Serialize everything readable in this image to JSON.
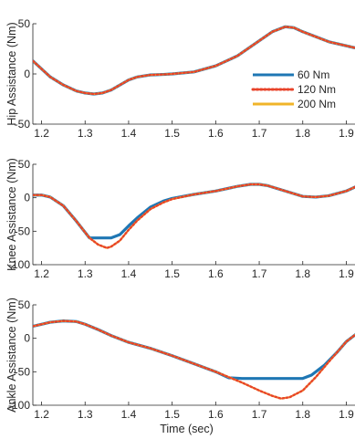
{
  "chart_data": [
    {
      "type": "line",
      "ylabel": "Hip Assistance (Nm)",
      "xlim": [
        1.18,
        1.92
      ],
      "ylim": [
        -50,
        50
      ],
      "xticks": [
        "1.2",
        "1.3",
        "1.4",
        "1.5",
        "1.6",
        "1.7",
        "1.8",
        "1.9"
      ],
      "yticks": [
        "-50",
        "0",
        "50"
      ],
      "legend_position": "right",
      "series": [
        {
          "name": "60 Nm",
          "color": "#1f77b4",
          "style": "solid",
          "x": [
            1.18,
            1.2,
            1.22,
            1.25,
            1.28,
            1.3,
            1.32,
            1.34,
            1.36,
            1.38,
            1.4,
            1.42,
            1.45,
            1.48,
            1.5,
            1.55,
            1.6,
            1.65,
            1.7,
            1.73,
            1.76,
            1.78,
            1.8,
            1.83,
            1.86,
            1.9,
            1.92
          ],
          "y": [
            13,
            5,
            -3,
            -11,
            -17,
            -19,
            -20,
            -19,
            -16,
            -11,
            -6,
            -3,
            -1,
            -0.5,
            0,
            2,
            8,
            18,
            33,
            42,
            47,
            46,
            42,
            37,
            32,
            28,
            26
          ]
        },
        {
          "name": "120 Nm",
          "color": "#e8432a",
          "style": "dotted",
          "x": [
            1.18,
            1.2,
            1.22,
            1.25,
            1.28,
            1.3,
            1.32,
            1.34,
            1.36,
            1.38,
            1.4,
            1.42,
            1.45,
            1.48,
            1.5,
            1.55,
            1.6,
            1.65,
            1.7,
            1.73,
            1.76,
            1.78,
            1.8,
            1.83,
            1.86,
            1.9,
            1.92
          ],
          "y": [
            13,
            5,
            -3,
            -11,
            -17,
            -19,
            -20,
            -19,
            -16,
            -11,
            -6,
            -3,
            -1,
            -0.5,
            0,
            2,
            8,
            18,
            33,
            42,
            47,
            46,
            42,
            37,
            32,
            28,
            26
          ]
        },
        {
          "name": "200 Nm",
          "color": "#f0b429",
          "style": "solid",
          "x": [
            1.18,
            1.2,
            1.22,
            1.25,
            1.28,
            1.3,
            1.32,
            1.34,
            1.36,
            1.38,
            1.4,
            1.42,
            1.45,
            1.48,
            1.5,
            1.55,
            1.6,
            1.65,
            1.7,
            1.73,
            1.76,
            1.78,
            1.8,
            1.83,
            1.86,
            1.9,
            1.92
          ],
          "y": [
            13,
            5,
            -3,
            -11,
            -17,
            -19,
            -20,
            -19,
            -16,
            -11,
            -6,
            -3,
            -1,
            -0.5,
            0,
            2,
            8,
            18,
            33,
            42,
            47,
            46,
            42,
            37,
            32,
            28,
            26
          ]
        }
      ]
    },
    {
      "type": "line",
      "ylabel": "Knee Assistance (Nm)",
      "xlim": [
        1.18,
        1.92
      ],
      "ylim": [
        -100,
        50
      ],
      "xticks": [
        "1.2",
        "1.3",
        "1.4",
        "1.5",
        "1.6",
        "1.7",
        "1.8",
        "1.9"
      ],
      "yticks": [
        "-100",
        "-50",
        "0",
        "50"
      ],
      "series": [
        {
          "color": "#1f77b4",
          "style": "solid",
          "x": [
            1.18,
            1.2,
            1.22,
            1.25,
            1.28,
            1.31,
            1.33,
            1.36,
            1.38,
            1.4,
            1.42,
            1.45,
            1.48,
            1.5,
            1.55,
            1.6,
            1.65,
            1.68,
            1.7,
            1.72,
            1.75,
            1.78,
            1.8,
            1.83,
            1.86,
            1.9,
            1.92
          ],
          "y": [
            4,
            4,
            1,
            -12,
            -35,
            -60,
            -60,
            -60,
            -55,
            -42,
            -30,
            -14,
            -5,
            -1,
            5,
            10,
            17,
            20,
            20,
            18,
            12,
            6,
            2,
            1,
            3,
            10,
            16
          ]
        },
        {
          "color": "#e8432a",
          "style": "dotted",
          "x": [
            1.18,
            1.2,
            1.22,
            1.25,
            1.28,
            1.31,
            1.33,
            1.35,
            1.36,
            1.38,
            1.4,
            1.42,
            1.45,
            1.48,
            1.5,
            1.55,
            1.6,
            1.65,
            1.68,
            1.7,
            1.72,
            1.75,
            1.78,
            1.8,
            1.83,
            1.86,
            1.9,
            1.92
          ],
          "y": [
            4,
            4,
            1,
            -12,
            -35,
            -60,
            -70,
            -75,
            -73,
            -64,
            -48,
            -34,
            -17,
            -7,
            -2,
            5,
            10,
            17,
            20,
            20,
            18,
            12,
            6,
            2,
            1,
            3,
            10,
            16
          ]
        },
        {
          "color": "#f0b429",
          "style": "solid",
          "x": [
            1.18,
            1.2,
            1.22,
            1.25,
            1.28,
            1.31,
            1.33,
            1.35,
            1.36,
            1.38,
            1.4,
            1.42,
            1.45,
            1.48,
            1.5,
            1.55,
            1.6,
            1.65,
            1.68,
            1.7,
            1.72,
            1.75,
            1.78,
            1.8,
            1.83,
            1.86,
            1.9,
            1.92
          ],
          "y": [
            4,
            4,
            1,
            -12,
            -35,
            -60,
            -70,
            -75,
            -73,
            -64,
            -48,
            -34,
            -17,
            -7,
            -2,
            5,
            10,
            17,
            20,
            20,
            18,
            12,
            6,
            2,
            1,
            3,
            10,
            16
          ]
        }
      ]
    },
    {
      "type": "line",
      "ylabel": "Ankle Assistance (Nm)",
      "xlabel": "Time (sec)",
      "xlim": [
        1.18,
        1.92
      ],
      "ylim": [
        -100,
        50
      ],
      "xticks": [
        "1.2",
        "1.3",
        "1.4",
        "1.5",
        "1.6",
        "1.7",
        "1.8",
        "1.9"
      ],
      "yticks": [
        "-100",
        "-50",
        "0",
        "50"
      ],
      "series": [
        {
          "color": "#1f77b4",
          "style": "solid",
          "x": [
            1.18,
            1.2,
            1.22,
            1.25,
            1.28,
            1.3,
            1.33,
            1.36,
            1.4,
            1.45,
            1.5,
            1.55,
            1.6,
            1.63,
            1.66,
            1.7,
            1.75,
            1.8,
            1.82,
            1.85,
            1.88,
            1.9,
            1.92
          ],
          "y": [
            18,
            21,
            24,
            26,
            25,
            21,
            13,
            4,
            -6,
            -15,
            -26,
            -38,
            -50,
            -59,
            -60,
            -60,
            -60,
            -60,
            -55,
            -40,
            -20,
            -5,
            5
          ]
        },
        {
          "color": "#e8432a",
          "style": "dotted",
          "x": [
            1.18,
            1.2,
            1.22,
            1.25,
            1.28,
            1.3,
            1.33,
            1.36,
            1.4,
            1.45,
            1.5,
            1.55,
            1.6,
            1.63,
            1.66,
            1.7,
            1.73,
            1.75,
            1.77,
            1.8,
            1.83,
            1.86,
            1.9,
            1.92
          ],
          "y": [
            18,
            21,
            24,
            26,
            25,
            21,
            13,
            4,
            -6,
            -15,
            -26,
            -38,
            -50,
            -58,
            -66,
            -78,
            -86,
            -90,
            -88,
            -78,
            -58,
            -35,
            -5,
            5
          ]
        },
        {
          "color": "#f0b429",
          "style": "solid",
          "x": [
            1.18,
            1.2,
            1.22,
            1.25,
            1.28,
            1.3,
            1.33,
            1.36,
            1.4,
            1.45,
            1.5,
            1.55,
            1.6,
            1.63,
            1.66,
            1.7,
            1.73,
            1.75,
            1.77,
            1.8,
            1.83,
            1.86,
            1.9,
            1.92
          ],
          "y": [
            18,
            21,
            24,
            26,
            25,
            21,
            13,
            4,
            -6,
            -15,
            -26,
            -38,
            -50,
            -58,
            -66,
            -78,
            -86,
            -90,
            -88,
            -78,
            -58,
            -35,
            -5,
            5
          ]
        }
      ]
    }
  ]
}
